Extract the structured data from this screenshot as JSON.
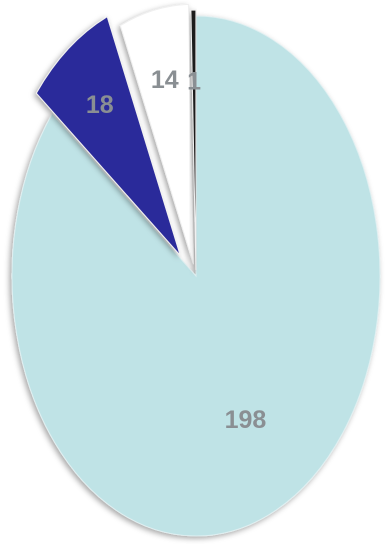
{
  "chart_data": {
    "type": "pie",
    "title": "",
    "values": [
      198,
      18,
      14,
      1
    ],
    "data_labels": [
      "198",
      "18",
      "14",
      "1"
    ],
    "colors": [
      "#bfe3e6",
      "#2a2a9a",
      "#ffffff",
      "#1c1c1c"
    ],
    "label_colors": [
      "#8a8f93",
      "#8a8f93",
      "#8a8f93",
      "#8a8f93"
    ],
    "exploded": true,
    "legend": "none"
  }
}
